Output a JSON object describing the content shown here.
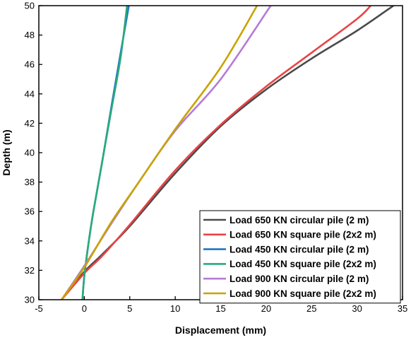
{
  "chart_data": {
    "type": "line",
    "xlabel": "Displacement (mm)",
    "ylabel": "Depth (m)",
    "xlim": [
      -5,
      35
    ],
    "ylim": [
      30,
      50
    ],
    "xticks": [
      -5,
      0,
      5,
      10,
      15,
      20,
      25,
      30,
      35
    ],
    "yticks": [
      30,
      32,
      34,
      36,
      38,
      40,
      42,
      44,
      46,
      48,
      50
    ],
    "grid": false,
    "legend_position": "bottom-right",
    "series": [
      {
        "name": "Load 650 KN circular pile (2 m)",
        "color": "#4a4a4a",
        "points": [
          [
            -2.5,
            30
          ],
          [
            0,
            31.9
          ],
          [
            2,
            33.1
          ],
          [
            5,
            35.0
          ],
          [
            10,
            38.6
          ],
          [
            15,
            41.8
          ],
          [
            20,
            44.3
          ],
          [
            25,
            46.4
          ],
          [
            30,
            48.3
          ],
          [
            34,
            50
          ]
        ]
      },
      {
        "name": "Load 650 KN square pile (2x2 m)",
        "color": "#e84444",
        "points": [
          [
            -2.5,
            30
          ],
          [
            0,
            31.8
          ],
          [
            2,
            33.0
          ],
          [
            5,
            35.1
          ],
          [
            10,
            38.8
          ],
          [
            15,
            41.9
          ],
          [
            20,
            44.5
          ],
          [
            25,
            46.8
          ],
          [
            30,
            49.1
          ],
          [
            31.5,
            50
          ]
        ]
      },
      {
        "name": "Load 450 KN circular pile (2 m)",
        "color": "#1f77c8",
        "points": [
          [
            -0.2,
            30
          ],
          [
            0,
            31.6
          ],
          [
            0.5,
            34.0
          ],
          [
            1,
            36.0
          ],
          [
            2,
            39.5
          ],
          [
            3,
            43.2
          ],
          [
            4,
            46.8
          ],
          [
            4.9,
            50
          ]
        ]
      },
      {
        "name": "Load 450 KN square pile (2x2 m)",
        "color": "#2aaa7a",
        "points": [
          [
            -0.2,
            30
          ],
          [
            0,
            31.6
          ],
          [
            0.5,
            34.0
          ],
          [
            1,
            36.0
          ],
          [
            2,
            39.5
          ],
          [
            3,
            43.0
          ],
          [
            4,
            46.5
          ],
          [
            4.7,
            50
          ]
        ]
      },
      {
        "name": "Load 900 KN circular pile (2 m)",
        "color": "#b57ad6",
        "points": [
          [
            -2.5,
            30
          ],
          [
            0,
            32.3
          ],
          [
            3,
            35.2
          ],
          [
            6,
            38.0
          ],
          [
            10,
            41.5
          ],
          [
            15,
            45.0
          ],
          [
            20.5,
            50
          ]
        ]
      },
      {
        "name": "Load 900 KN square pile (2x2 m)",
        "color": "#c9a300",
        "points": [
          [
            -2.5,
            30
          ],
          [
            0,
            32.2
          ],
          [
            3,
            35.3
          ],
          [
            6,
            38.0
          ],
          [
            10,
            41.6
          ],
          [
            15,
            45.8
          ],
          [
            19,
            50
          ]
        ]
      }
    ]
  }
}
